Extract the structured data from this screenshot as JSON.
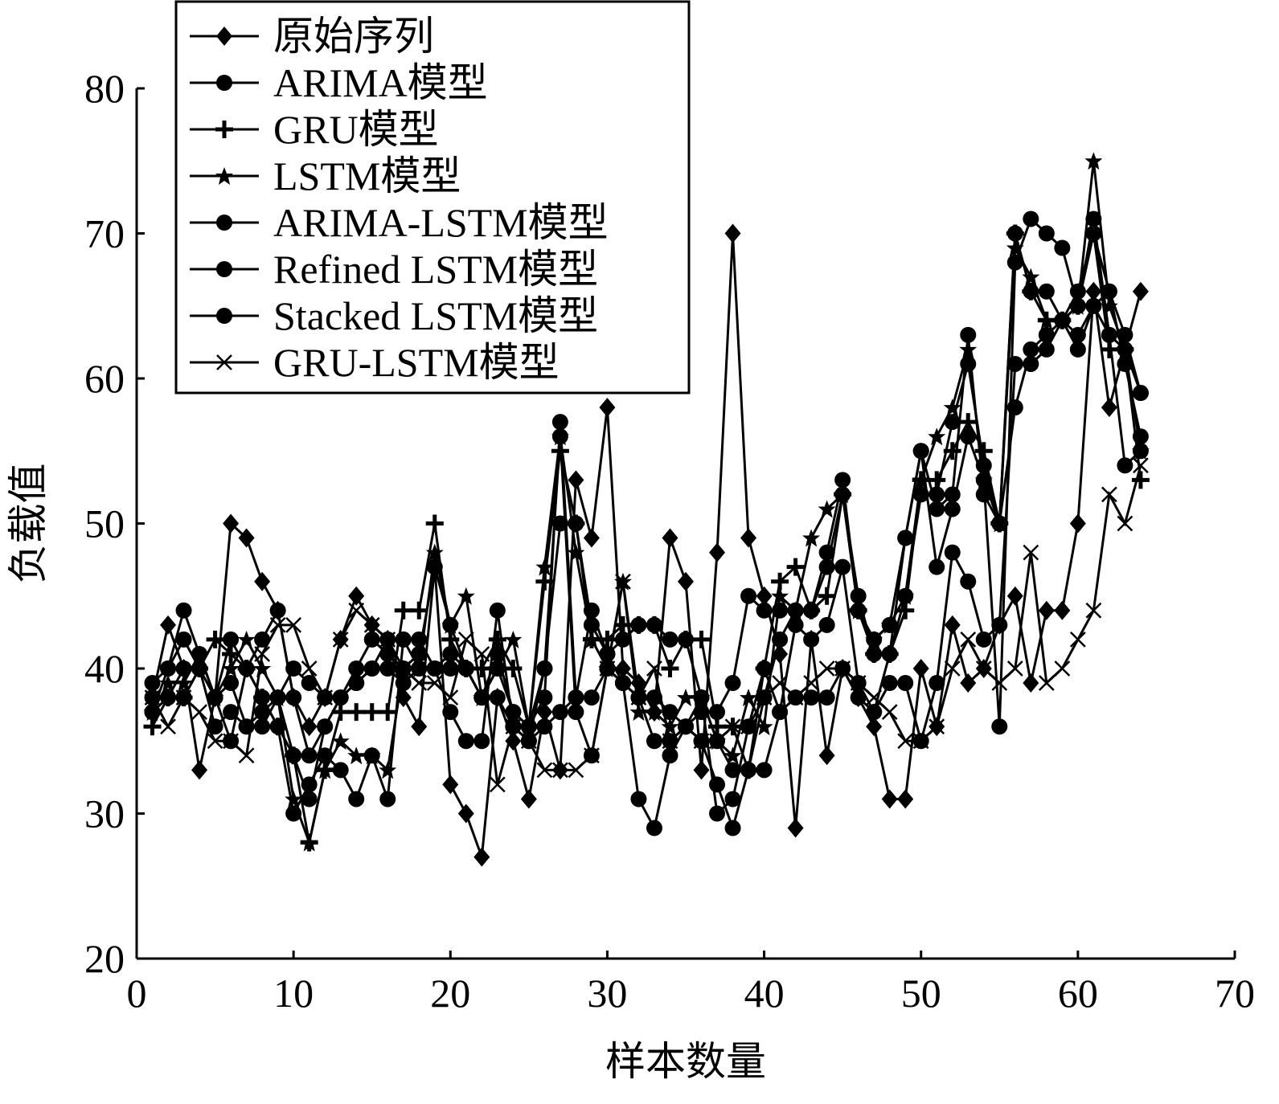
{
  "chart_data": {
    "type": "line",
    "xlabel": "样本数量",
    "ylabel": "负载值",
    "xlim": [
      0,
      70
    ],
    "ylim": [
      20,
      80
    ],
    "xticks": [
      0,
      10,
      20,
      30,
      40,
      50,
      60,
      70
    ],
    "yticks": [
      20,
      30,
      40,
      50,
      60,
      70,
      80
    ],
    "x_tick_labels": [
      "0",
      "10",
      "20",
      "30",
      "40",
      "50",
      "60",
      "70"
    ],
    "y_tick_labels": [
      "20",
      "30",
      "40",
      "50",
      "60",
      "70",
      "80"
    ],
    "legend_position": "top-left",
    "grid": false,
    "x": [
      1,
      2,
      3,
      4,
      5,
      6,
      7,
      8,
      9,
      10,
      11,
      12,
      13,
      14,
      15,
      16,
      17,
      18,
      19,
      20,
      21,
      22,
      23,
      24,
      25,
      26,
      27,
      28,
      29,
      30,
      31,
      32,
      33,
      34,
      35,
      36,
      37,
      38,
      39,
      40,
      41,
      42,
      43,
      44,
      45,
      46,
      47,
      48,
      49,
      50,
      51,
      52,
      53,
      54,
      55,
      56,
      57,
      58,
      59,
      60,
      61,
      62,
      63,
      64
    ],
    "series": [
      {
        "name": "原始序列",
        "marker": "diamond",
        "values": [
          38,
          43,
          40,
          33,
          38,
          50,
          49,
          46,
          44,
          38,
          36,
          38,
          42,
          45,
          43,
          42,
          38,
          36,
          47,
          32,
          30,
          27,
          38,
          35,
          31,
          37,
          33,
          53,
          49,
          58,
          40,
          39,
          37,
          49,
          46,
          33,
          48,
          70,
          49,
          45,
          41,
          29,
          42,
          34,
          40,
          38,
          36,
          31,
          31,
          40,
          36,
          43,
          39,
          40,
          43,
          45,
          39,
          44,
          44,
          50,
          66,
          58,
          62,
          66
        ]
      },
      {
        "name": "ARIMA模型",
        "marker": "dot",
        "values": [
          37,
          40,
          42,
          40,
          38,
          42,
          40,
          42,
          44,
          38,
          34,
          36,
          38,
          40,
          42,
          41,
          40,
          41,
          47,
          43,
          40,
          38,
          40,
          37,
          35,
          40,
          50,
          50,
          43,
          41,
          42,
          43,
          43,
          42,
          42,
          38,
          35,
          33,
          33,
          38,
          42,
          44,
          44,
          47,
          52,
          45,
          41,
          41,
          45,
          52,
          52,
          57,
          61,
          54,
          50,
          70,
          66,
          66,
          64,
          66,
          70,
          66,
          61,
          56
        ]
      },
      {
        "name": "GRU模型",
        "marker": "plus",
        "values": [
          36,
          38,
          38,
          40,
          42,
          41,
          40,
          38,
          36,
          34,
          28,
          33,
          37,
          37,
          37,
          37,
          44,
          44,
          50,
          42,
          40,
          40,
          42,
          40,
          36,
          46,
          55,
          50,
          42,
          42,
          43,
          43,
          43,
          40,
          42,
          42,
          36,
          36,
          33,
          40,
          46,
          47,
          44,
          45,
          52,
          44,
          41,
          41,
          44,
          53,
          53,
          55,
          57,
          55,
          50,
          70,
          66,
          64,
          64,
          65,
          70,
          62,
          62,
          53
        ]
      },
      {
        "name": "LSTM模型",
        "marker": "star",
        "values": [
          37,
          39,
          39,
          41,
          38,
          40,
          42,
          40,
          38,
          31,
          28,
          33,
          35,
          34,
          34,
          33,
          40,
          40,
          48,
          43,
          45,
          38,
          40,
          42,
          36,
          47,
          56,
          48,
          42,
          40,
          46,
          37,
          37,
          36,
          38,
          38,
          35,
          34,
          38,
          36,
          45,
          44,
          49,
          51,
          52,
          44,
          42,
          43,
          45,
          53,
          56,
          58,
          62,
          53,
          50,
          69,
          67,
          64,
          64,
          65,
          75,
          65,
          62,
          55
        ]
      },
      {
        "name": "ARIMA-LSTM模型",
        "marker": "dot",
        "values": [
          39,
          40,
          44,
          41,
          38,
          39,
          36,
          37,
          38,
          34,
          31,
          36,
          38,
          39,
          40,
          40,
          39,
          40,
          40,
          37,
          35,
          35,
          44,
          36,
          36,
          38,
          57,
          38,
          44,
          41,
          39,
          38,
          38,
          37,
          36,
          37,
          37,
          39,
          45,
          44,
          44,
          44,
          44,
          48,
          53,
          44,
          42,
          43,
          49,
          55,
          51,
          52,
          63,
          52,
          50,
          58,
          62,
          63,
          64,
          62,
          65,
          66,
          63,
          59
        ]
      },
      {
        "name": "Refined LSTM模型",
        "marker": "dot",
        "values": [
          38,
          38,
          38,
          40,
          38,
          35,
          40,
          38,
          36,
          30,
          32,
          34,
          33,
          31,
          34,
          31,
          42,
          40,
          40,
          41,
          40,
          38,
          41,
          37,
          36,
          40,
          56,
          37,
          34,
          40,
          39,
          31,
          29,
          34,
          36,
          38,
          30,
          31,
          36,
          40,
          37,
          43,
          42,
          43,
          47,
          39,
          37,
          41,
          49,
          55,
          47,
          51,
          56,
          53,
          36,
          68,
          71,
          70,
          69,
          65,
          71,
          63,
          62,
          59
        ]
      },
      {
        "name": "Stacked LSTM模型",
        "marker": "dot",
        "values": [
          37,
          38,
          40,
          40,
          36,
          37,
          36,
          36,
          38,
          40,
          39,
          38,
          38,
          39,
          40,
          42,
          42,
          42,
          40,
          40,
          40,
          38,
          38,
          36,
          35,
          36,
          37,
          38,
          38,
          40,
          39,
          38,
          35,
          35,
          36,
          35,
          32,
          29,
          33,
          33,
          37,
          38,
          38,
          38,
          40,
          38,
          37,
          39,
          39,
          35,
          39,
          48,
          46,
          42,
          43,
          61,
          61,
          62,
          64,
          63,
          65,
          63,
          54,
          55
        ]
      },
      {
        "name": "GRU-LSTM模型",
        "marker": "x",
        "values": [
          38,
          36,
          38,
          37,
          35,
          35,
          34,
          41,
          43,
          43,
          40,
          38,
          42,
          44,
          43,
          42,
          40,
          39,
          39,
          38,
          42,
          41,
          32,
          36,
          35,
          33,
          33,
          33,
          34,
          40,
          46,
          38,
          40,
          35,
          36,
          35,
          35,
          36,
          36,
          38,
          39,
          38,
          39,
          40,
          40,
          39,
          38,
          37,
          35,
          35,
          36,
          40,
          42,
          40,
          39,
          40,
          48,
          39,
          40,
          42,
          44,
          52,
          50,
          54
        ]
      }
    ]
  }
}
